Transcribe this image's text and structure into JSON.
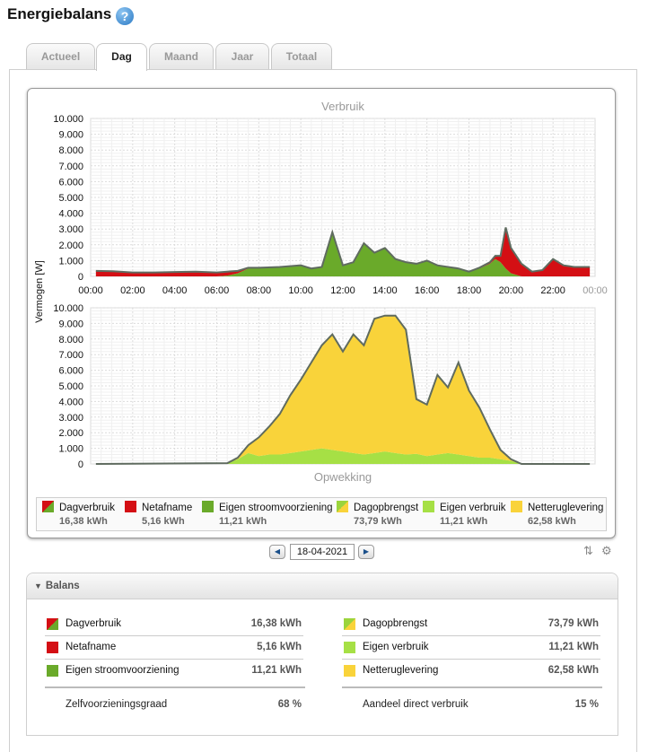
{
  "page": {
    "title": "Energiebalans",
    "help_icon": "?"
  },
  "tabs": [
    {
      "label": "Actueel",
      "active": false
    },
    {
      "label": "Dag",
      "active": true
    },
    {
      "label": "Maand",
      "active": false
    },
    {
      "label": "Jaar",
      "active": false
    },
    {
      "label": "Totaal",
      "active": false
    }
  ],
  "colors": {
    "dagverbruik_a": "#d40f14",
    "dagverbruik_b": "#6aaa2a",
    "netafname": "#d40f14",
    "eigen_stroom": "#6aaa2a",
    "dagopbrengst_a": "#9bd43c",
    "dagopbrengst_b": "#f9d33a",
    "eigen_verbruik": "#a6e045",
    "netteruglevering": "#f9d33a",
    "line": "#5f6b5f"
  },
  "chart_data": [
    {
      "type": "area",
      "title": "Verbruik",
      "ylabel": "Vermogen [W]",
      "x_ticks": [
        "00:00",
        "02:00",
        "04:00",
        "06:00",
        "08:00",
        "10:00",
        "12:00",
        "14:00",
        "16:00",
        "18:00",
        "20:00",
        "22:00",
        "00:00"
      ],
      "y_ticks": [
        "10.000",
        "9.000",
        "8.000",
        "7.000",
        "6.000",
        "5.000",
        "4.000",
        "3.000",
        "2.000",
        "1.000",
        "0"
      ],
      "ylim": [
        0,
        10000
      ],
      "grid": true,
      "x_hours": [
        0.25,
        1,
        2,
        3,
        4,
        5,
        6,
        6.5,
        7,
        7.5,
        8,
        9,
        10,
        10.5,
        11,
        11.5,
        12,
        12.5,
        13,
        13.5,
        14,
        14.5,
        15,
        15.5,
        16,
        16.5,
        17,
        17.5,
        18,
        18.5,
        19,
        19.25,
        19.5,
        19.75,
        20,
        20.5,
        21,
        21.5,
        22,
        22.5,
        23,
        23.75
      ],
      "series": [
        {
          "name": "Eigen stroomvoorziening",
          "values": [
            0,
            0,
            0,
            0,
            0,
            0,
            0,
            50,
            200,
            500,
            550,
            600,
            700,
            500,
            600,
            2800,
            700,
            900,
            2100,
            1500,
            1800,
            1100,
            900,
            800,
            1000,
            700,
            600,
            500,
            300,
            500,
            800,
            1100,
            900,
            500,
            200,
            0,
            0,
            0,
            0,
            0,
            0,
            0
          ]
        },
        {
          "name": "Netafname",
          "values": [
            350,
            330,
            250,
            250,
            280,
            300,
            250,
            250,
            150,
            50,
            0,
            0,
            0,
            0,
            0,
            0,
            0,
            0,
            0,
            0,
            0,
            0,
            0,
            0,
            0,
            0,
            0,
            0,
            0,
            50,
            100,
            200,
            400,
            2600,
            1600,
            800,
            300,
            400,
            1100,
            700,
            600,
            600
          ]
        }
      ]
    },
    {
      "type": "area",
      "title": "Opwekking",
      "ylabel": "Vermogen [W]",
      "x_ticks": [],
      "y_ticks": [
        "10.000",
        "9.000",
        "8.000",
        "7.000",
        "6.000",
        "5.000",
        "4.000",
        "3.000",
        "2.000",
        "1.000",
        "0"
      ],
      "ylim": [
        0,
        10000
      ],
      "grid": true,
      "x_hours": [
        0.25,
        6.5,
        7,
        7.5,
        8,
        8.5,
        9,
        9.5,
        10,
        10.5,
        11,
        11.5,
        12,
        12.5,
        13,
        13.5,
        14,
        14.5,
        15,
        15.5,
        16,
        16.5,
        17,
        17.5,
        18,
        18.5,
        19,
        19.5,
        20,
        20.5,
        21,
        21.5,
        22,
        22.5,
        23,
        23.75
      ],
      "series": [
        {
          "name": "Eigen verbruik",
          "values": [
            0,
            50,
            300,
            700,
            500,
            600,
            600,
            700,
            800,
            900,
            1000,
            900,
            800,
            700,
            600,
            700,
            800,
            700,
            600,
            650,
            500,
            600,
            700,
            600,
            500,
            400,
            400,
            300,
            200,
            0,
            0,
            0,
            0,
            0,
            0,
            0
          ]
        },
        {
          "name": "Netteruglevering",
          "values": [
            0,
            0,
            100,
            500,
            1200,
            1800,
            2600,
            3700,
            4600,
            5600,
            6600,
            7400,
            6400,
            7600,
            7000,
            8600,
            8700,
            8800,
            8000,
            3500,
            3300,
            5100,
            4200,
            5900,
            4200,
            3200,
            1800,
            600,
            100,
            0,
            0,
            0,
            0,
            0,
            0,
            0
          ]
        }
      ]
    }
  ],
  "legend": [
    {
      "label": "Dagverbruik",
      "value": "16,38 kWh",
      "icon": "dagverbruik-icon"
    },
    {
      "label": "Netafname",
      "value": "5,16 kWh",
      "icon": "netafname-icon"
    },
    {
      "label": "Eigen stroomvoorziening",
      "value": "11,21 kWh",
      "icon": "eigen-stroom-icon"
    },
    {
      "label": "Dagopbrengst",
      "value": "73,79 kWh",
      "icon": "dagopbrengst-icon"
    },
    {
      "label": "Eigen verbruik",
      "value": "11,21 kWh",
      "icon": "eigen-verbruik-icon"
    },
    {
      "label": "Netteruglevering",
      "value": "62,58 kWh",
      "icon": "netteruglevering-icon"
    }
  ],
  "date_nav": {
    "date": "18-04-2021",
    "prev": "◀",
    "next": "▶"
  },
  "balans": {
    "header": "Balans",
    "left": [
      {
        "label": "Dagverbruik",
        "value": "16,38 kWh"
      },
      {
        "label": "Netafname",
        "value": "5,16 kWh"
      },
      {
        "label": "Eigen stroomvoorziening",
        "value": "11,21 kWh"
      }
    ],
    "left_summary": {
      "label": "Zelfvoorzieningsgraad",
      "value": "68 %"
    },
    "right": [
      {
        "label": "Dagopbrengst",
        "value": "73,79 kWh"
      },
      {
        "label": "Eigen verbruik",
        "value": "11,21 kWh"
      },
      {
        "label": "Netteruglevering",
        "value": "62,58 kWh"
      }
    ],
    "right_summary": {
      "label": "Aandeel direct verbruik",
      "value": "15 %"
    }
  }
}
